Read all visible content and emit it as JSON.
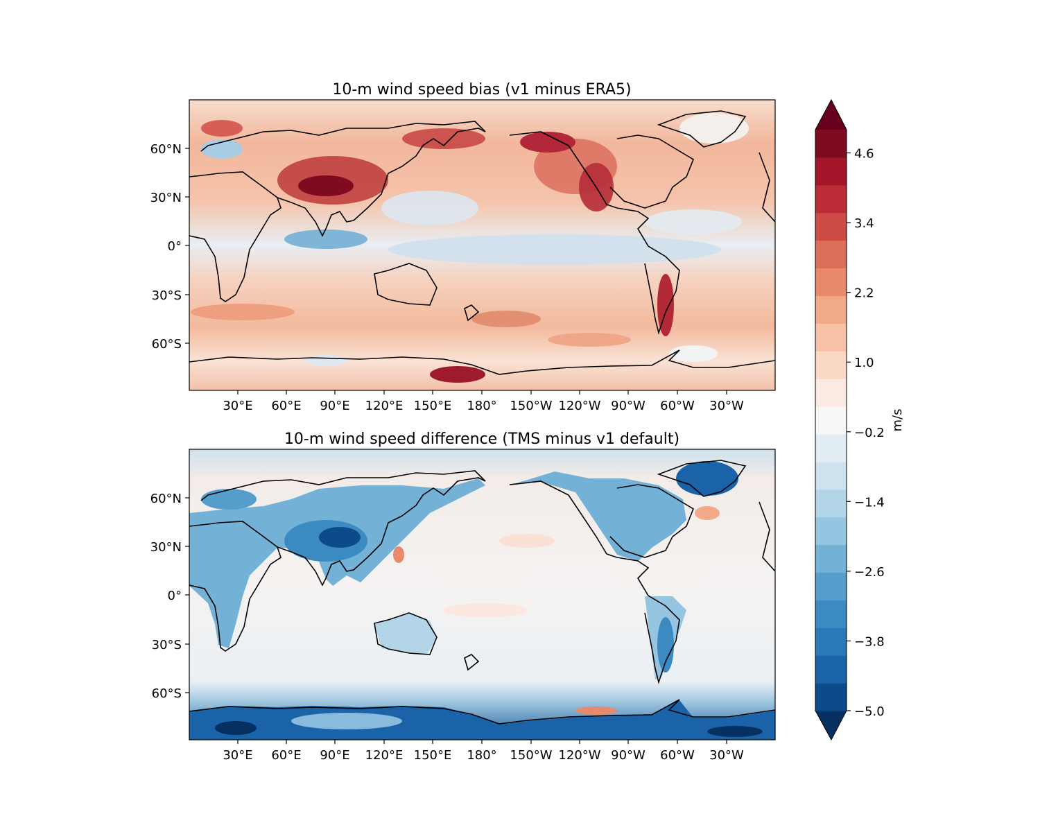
{
  "figure": {
    "panels": [
      {
        "id": "bias",
        "title": "10-m wind speed bias (v1 minus ERA5)",
        "lat_ticks": [
          "60°N",
          "30°N",
          "0°",
          "30°S",
          "60°S"
        ],
        "lon_ticks": [
          "30°E",
          "60°E",
          "90°E",
          "120°E",
          "150°E",
          "180°",
          "150°W",
          "120°W",
          "90°W",
          "60°W",
          "30°W"
        ],
        "field": "mostly positive (red); strongest over Central Asia, Alaska / Rocky Mountains, the Andes and the Antarctic coast; weak negative (blue) bands over the tropical oceans"
      },
      {
        "id": "difference",
        "title": "10-m wind speed difference (TMS minus v1 default)",
        "lat_ticks": [
          "60°N",
          "30°N",
          "0°",
          "30°S",
          "60°S"
        ],
        "lon_ticks": [
          "30°E",
          "60°E",
          "90°E",
          "120°E",
          "150°E",
          "180°",
          "150°W",
          "120°W",
          "90°W",
          "60°W",
          "30°W"
        ],
        "field": "negative (blue) over land, strongest over the Tibetan Plateau, Greenland and Antarctica; near zero over the oceans with scattered weak positive (red) patches"
      }
    ],
    "colorbar": {
      "label": "m/s",
      "ticks": [
        "4.6",
        "3.4",
        "2.2",
        "1.0",
        "−0.2",
        "−1.4",
        "−2.6",
        "−3.8",
        "−5.0"
      ],
      "range": [
        -5.0,
        5.0
      ],
      "levels": 25,
      "extend": "both",
      "colormap": "RdBu_r",
      "colors": [
        "#053061",
        "#0d4a8a",
        "#1b63a8",
        "#2b78b8",
        "#3b8bc2",
        "#559ecc",
        "#74b1d6",
        "#96c5e1",
        "#b3d5e8",
        "#cde2ee",
        "#e1edf3",
        "#f7f7f7",
        "#faeae3",
        "#fbd8c6",
        "#f6c1a7",
        "#f2a988",
        "#e8896c",
        "#dc6d58",
        "#cd4d46",
        "#bb2c36",
        "#a3162a",
        "#7f0b20",
        "#67001f"
      ]
    }
  }
}
